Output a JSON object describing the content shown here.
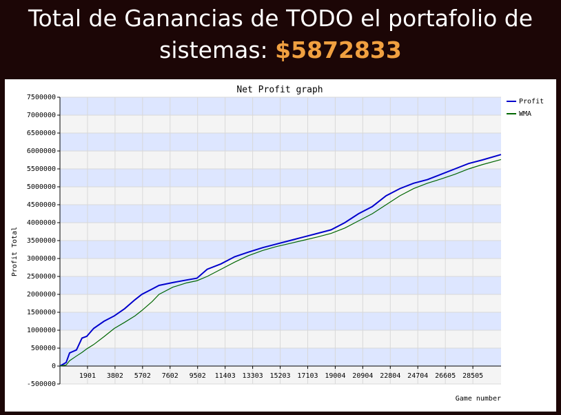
{
  "header": {
    "title": "Total de Ganancias de TODO el portafolio de sistemas:",
    "amount": "$5872833"
  },
  "chart_data": {
    "type": "line",
    "title": "Net Profit graph",
    "x_label": "Game number",
    "y_label": "Profit Total",
    "x": [
      0,
      428,
      665,
      1140,
      1520,
      1853,
      2328,
      3040,
      3753,
      4465,
      5178,
      5653,
      6365,
      6840,
      7790,
      8740,
      9453,
      10165,
      11115,
      12065,
      13015,
      13965,
      14915,
      15865,
      16815,
      17765,
      18715,
      19665,
      20615,
      21565,
      22515,
      23465,
      24415,
      25365,
      26315,
      27265,
      28215,
      29165,
      30448
    ],
    "series": [
      {
        "name": "Profit",
        "color": "#0000cc",
        "values": [
          0,
          100000,
          365000,
          450000,
          780000,
          830000,
          1050000,
          1250000,
          1400000,
          1600000,
          1850000,
          2000000,
          2150000,
          2250000,
          2330000,
          2400000,
          2450000,
          2700000,
          2850000,
          3050000,
          3180000,
          3300000,
          3400000,
          3500000,
          3600000,
          3700000,
          3800000,
          4000000,
          4250000,
          4450000,
          4750000,
          4950000,
          5100000,
          5200000,
          5350000,
          5500000,
          5650000,
          5750000,
          5900000
        ]
      },
      {
        "name": "WMA",
        "color": "#006600",
        "values": [
          0,
          30000,
          150000,
          280000,
          380000,
          480000,
          600000,
          820000,
          1050000,
          1220000,
          1400000,
          1550000,
          1800000,
          2000000,
          2200000,
          2320000,
          2380000,
          2500000,
          2700000,
          2900000,
          3080000,
          3220000,
          3330000,
          3420000,
          3510000,
          3600000,
          3700000,
          3850000,
          4050000,
          4250000,
          4500000,
          4750000,
          4950000,
          5100000,
          5220000,
          5350000,
          5500000,
          5620000,
          5760000
        ]
      }
    ],
    "xlim": [
      0,
      30450
    ],
    "ylim": [
      -500000,
      7500000
    ],
    "xticks": [
      1901,
      3802,
      5702,
      7602,
      9502,
      11403,
      13303,
      15203,
      17103,
      19004,
      20904,
      22804,
      24704,
      26605,
      28505
    ],
    "yticks": [
      -500000,
      0,
      500000,
      1000000,
      1500000,
      2000000,
      2500000,
      3000000,
      3500000,
      4000000,
      4500000,
      5000000,
      5500000,
      6000000,
      6500000,
      7000000,
      7500000
    ],
    "grid": true,
    "legend": "right"
  }
}
